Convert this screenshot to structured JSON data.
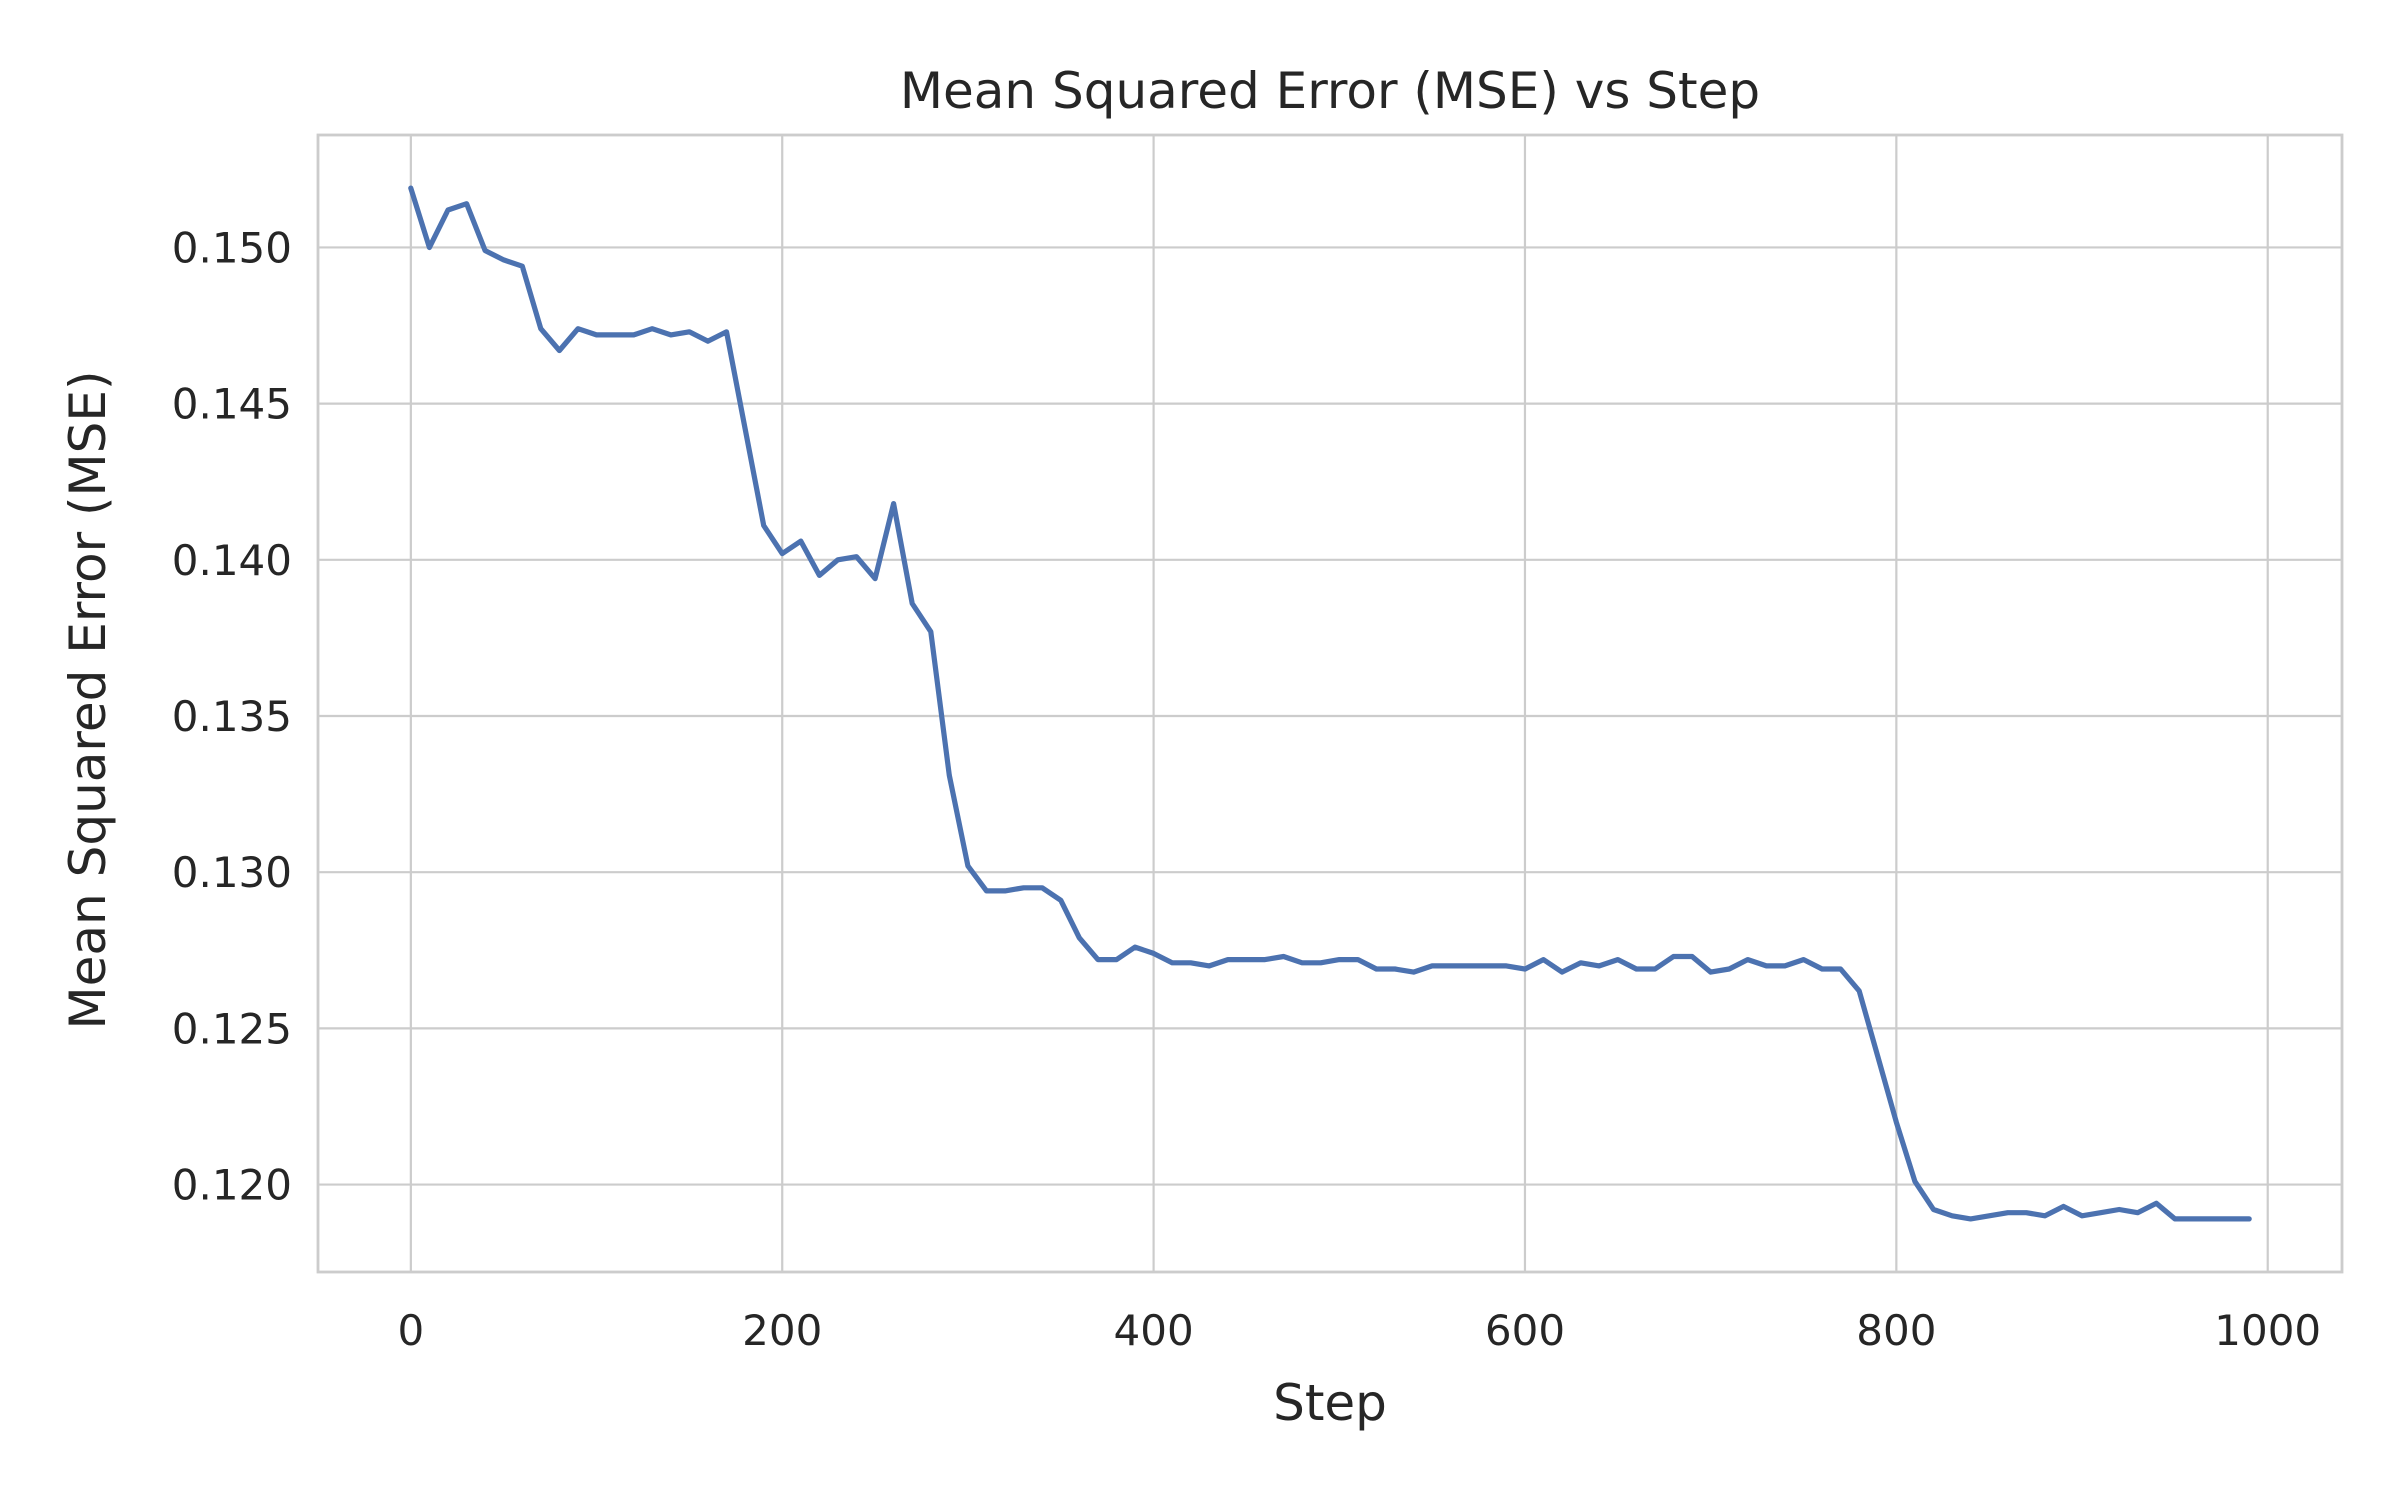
{
  "chart_data": {
    "type": "line",
    "title": "Mean Squared Error (MSE) vs Step",
    "xlabel": "Step",
    "ylabel": "Mean Squared Error (MSE)",
    "xlim": [
      -50,
      1040
    ],
    "ylim": [
      0.1172,
      0.1536
    ],
    "xticks": [
      0,
      200,
      400,
      600,
      800,
      1000
    ],
    "xtick_labels": [
      "0",
      "200",
      "400",
      "600",
      "800",
      "1000"
    ],
    "yticks": [
      0.12,
      0.125,
      0.13,
      0.135,
      0.14,
      0.145,
      0.15
    ],
    "ytick_labels": [
      "0.120",
      "0.125",
      "0.130",
      "0.135",
      "0.140",
      "0.145",
      "0.150"
    ],
    "grid": true,
    "colors": {
      "line": "#4c72b0",
      "grid": "#cccccc",
      "spine": "#cccccc",
      "text": "#262626"
    },
    "series": [
      {
        "x": [
          0,
          10,
          20,
          30,
          40,
          50,
          60,
          70,
          80,
          90,
          100,
          110,
          120,
          130,
          140,
          150,
          160,
          170,
          180,
          190,
          200,
          210,
          220,
          230,
          240,
          250,
          260,
          270,
          280,
          290,
          300,
          310,
          320,
          330,
          340,
          350,
          360,
          370,
          380,
          390,
          400,
          410,
          420,
          430,
          440,
          450,
          460,
          470,
          480,
          490,
          500,
          510,
          520,
          530,
          540,
          550,
          560,
          570,
          580,
          590,
          600,
          610,
          620,
          630,
          640,
          650,
          660,
          670,
          680,
          690,
          700,
          710,
          720,
          730,
          740,
          750,
          760,
          770,
          780,
          790,
          800,
          810,
          820,
          830,
          840,
          850,
          860,
          870,
          880,
          890,
          900,
          910,
          920,
          930,
          940,
          950,
          960,
          970,
          980,
          990
        ],
        "values": [
          0.1519,
          0.15,
          0.1512,
          0.1514,
          0.1499,
          0.1496,
          0.1494,
          0.1474,
          0.1467,
          0.1474,
          0.1472,
          0.1472,
          0.1472,
          0.1474,
          0.1472,
          0.1473,
          0.147,
          0.1473,
          0.1442,
          0.1411,
          0.1402,
          0.1406,
          0.1395,
          0.14,
          0.1401,
          0.1394,
          0.1418,
          0.1386,
          0.1377,
          0.1331,
          0.1302,
          0.1294,
          0.1294,
          0.1295,
          0.1295,
          0.1291,
          0.1279,
          0.1272,
          0.1272,
          0.1276,
          0.1274,
          0.1271,
          0.1271,
          0.127,
          0.1272,
          0.1272,
          0.1272,
          0.1273,
          0.1271,
          0.1271,
          0.1272,
          0.1272,
          0.1269,
          0.1269,
          0.1268,
          0.127,
          0.127,
          0.127,
          0.127,
          0.127,
          0.1269,
          0.1272,
          0.1268,
          0.1271,
          0.127,
          0.1272,
          0.1269,
          0.1269,
          0.1273,
          0.1273,
          0.1268,
          0.1269,
          0.1272,
          0.127,
          0.127,
          0.1272,
          0.1269,
          0.1269,
          0.1262,
          0.1241,
          0.122,
          0.1201,
          0.1192,
          0.119,
          0.1189,
          0.119,
          0.1191,
          0.1191,
          0.119,
          0.1193,
          0.119,
          0.1191,
          0.1192,
          0.1191,
          0.1194,
          0.1189,
          0.1189,
          0.1189,
          0.1189,
          0.1189
        ]
      }
    ]
  }
}
